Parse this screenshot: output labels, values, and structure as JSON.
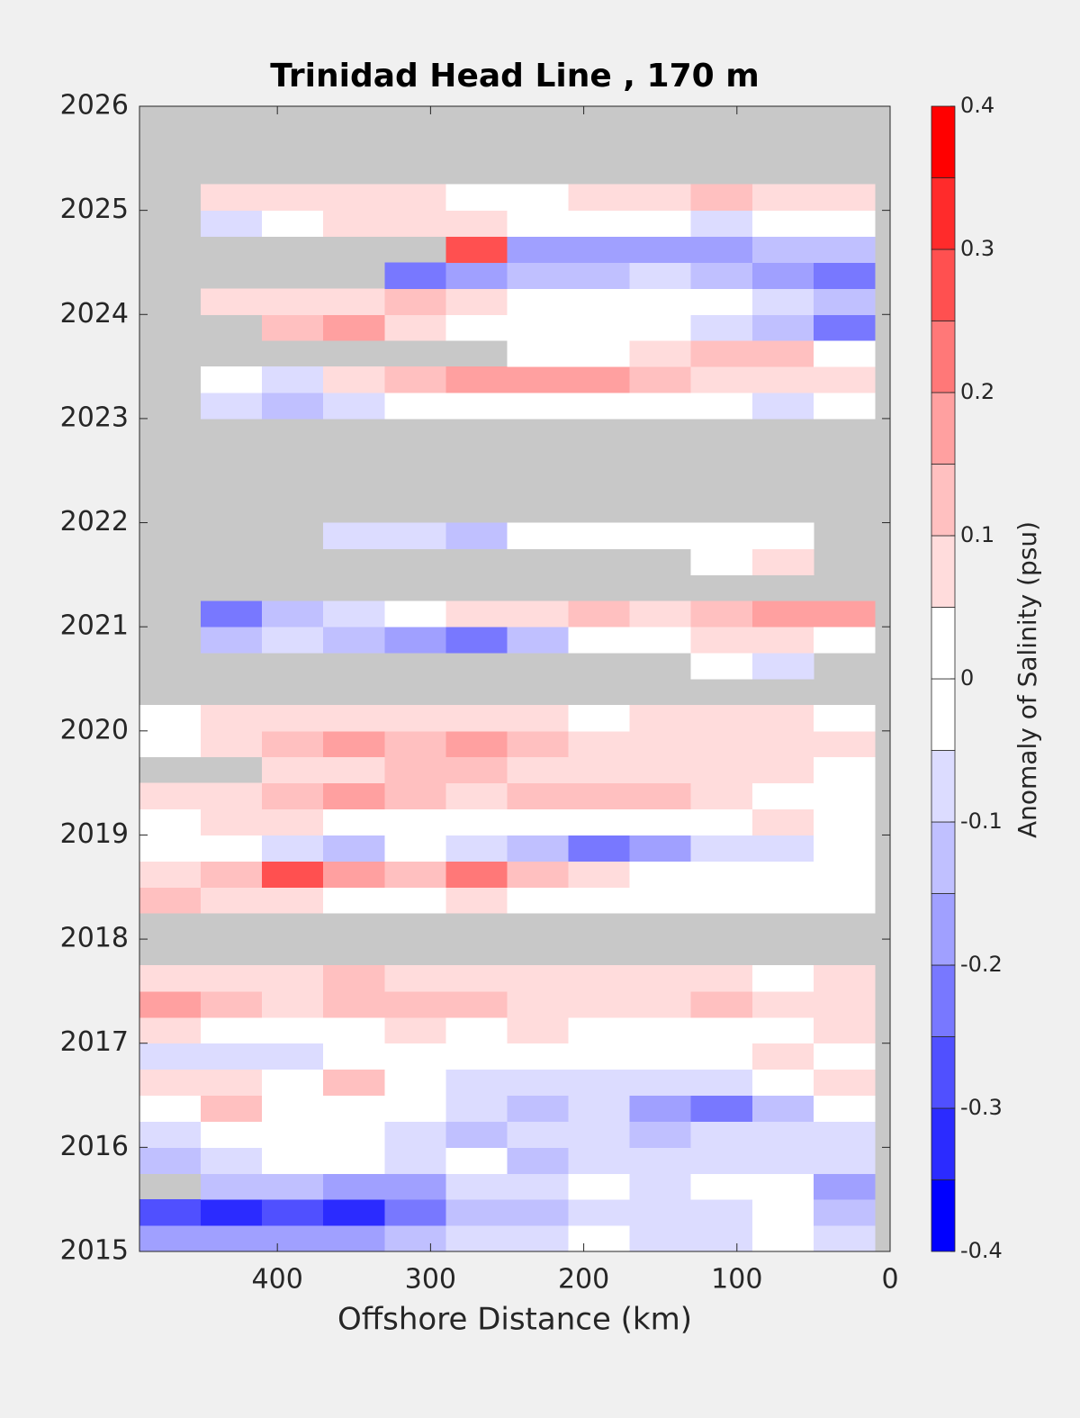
{
  "chart_data": {
    "type": "contourf",
    "title": "Trinidad Head Line , 170 m",
    "xlabel": "Offshore Distance (km)",
    "colorbar_label": "Anomaly of Salinity (psu)",
    "xlim": [
      490,
      0
    ],
    "xticks": [
      400,
      300,
      200,
      100,
      0
    ],
    "ylim": [
      2015,
      2026
    ],
    "yticks": [
      2015,
      2016,
      2017,
      2018,
      2019,
      2020,
      2021,
      2022,
      2023,
      2024,
      2025,
      2026
    ],
    "clim": [
      -0.4,
      0.4
    ],
    "cticks": [
      -0.4,
      -0.3,
      -0.2,
      -0.1,
      0,
      0.1,
      0.2,
      0.3,
      0.4
    ],
    "levels": [
      -0.4,
      -0.35,
      -0.3,
      -0.25,
      -0.2,
      -0.15,
      -0.1,
      -0.05,
      0,
      0.05,
      0.1,
      0.15,
      0.2,
      0.25,
      0.3,
      0.35,
      0.4
    ],
    "colormap": [
      "#0000ff",
      "#2b2bff",
      "#5050ff",
      "#7878ff",
      "#a0a0ff",
      "#c0c0ff",
      "#dcdcff",
      "#ffffff",
      "#ffffff",
      "#ffdcdc",
      "#ffc0c0",
      "#ffa0a0",
      "#ff7878",
      "#ff5050",
      "#ff2b2b",
      "#ff0000"
    ],
    "missing_color": "#c8c8c8",
    "x": [
      470,
      430,
      390,
      350,
      310,
      270,
      230,
      190,
      150,
      110,
      70,
      30
    ],
    "y": [
      2015.125,
      2015.375,
      2015.625,
      2015.875,
      2016.125,
      2016.375,
      2016.625,
      2016.875,
      2017.125,
      2017.375,
      2017.625,
      2017.875,
      2018.125,
      2018.375,
      2018.625,
      2018.875,
      2019.125,
      2019.375,
      2019.625,
      2019.875,
      2020.125,
      2020.375,
      2020.625,
      2020.875,
      2021.125,
      2021.375,
      2021.625,
      2021.875,
      2022.125,
      2022.375,
      2022.625,
      2022.875,
      2023.125,
      2023.375,
      2023.625,
      2023.875,
      2024.125,
      2024.375,
      2024.625,
      2024.875,
      2025.125,
      2025.375,
      2025.625,
      2025.875
    ],
    "z": [
      [
        -0.2,
        -0.2,
        -0.2,
        -0.2,
        -0.15,
        -0.1,
        -0.1,
        -0.05,
        -0.1,
        -0.1,
        -0.05,
        -0.1
      ],
      [
        -0.3,
        -0.35,
        -0.3,
        -0.35,
        -0.25,
        -0.15,
        -0.15,
        -0.1,
        -0.1,
        -0.1,
        -0.05,
        -0.15
      ],
      [
        null,
        -0.15,
        -0.15,
        -0.2,
        -0.2,
        -0.1,
        -0.1,
        -0.05,
        -0.1,
        -0.05,
        0,
        -0.2
      ],
      [
        -0.15,
        -0.1,
        -0.05,
        0,
        -0.1,
        0,
        -0.15,
        -0.1,
        -0.1,
        -0.1,
        -0.1,
        -0.1
      ],
      [
        -0.1,
        0,
        0,
        -0.05,
        -0.1,
        -0.15,
        -0.1,
        -0.1,
        -0.15,
        -0.1,
        -0.1,
        -0.1
      ],
      [
        0,
        0.12,
        0,
        0,
        0,
        -0.07,
        -0.12,
        -0.07,
        -0.17,
        -0.22,
        -0.12,
        0
      ],
      [
        0.07,
        0.07,
        0,
        0.12,
        0,
        -0.07,
        -0.07,
        -0.07,
        -0.07,
        -0.07,
        0,
        0.07
      ],
      [
        -0.07,
        -0.07,
        -0.07,
        0,
        0,
        0,
        0,
        0,
        0,
        0,
        0.07,
        0
      ],
      [
        0.07,
        0,
        0,
        0,
        0.07,
        0,
        0.07,
        0,
        0,
        0,
        0,
        0.07
      ],
      [
        0.17,
        0.12,
        0.07,
        0.12,
        0.12,
        0.12,
        0.07,
        0.07,
        0.07,
        0.12,
        0.07,
        0.07
      ],
      [
        0.07,
        0.07,
        0.07,
        0.12,
        0.07,
        0.07,
        0.07,
        0.07,
        0.07,
        0.07,
        0,
        0.07
      ],
      [
        null,
        null,
        null,
        null,
        null,
        null,
        null,
        null,
        null,
        null,
        null,
        null
      ],
      [
        null,
        null,
        null,
        null,
        null,
        null,
        null,
        null,
        null,
        null,
        null,
        null
      ],
      [
        0.12,
        0.07,
        0.07,
        0,
        0,
        0.07,
        0,
        0,
        0,
        0,
        0,
        0
      ],
      [
        0.07,
        0.12,
        0.27,
        0.17,
        0.12,
        0.22,
        0.12,
        0.07,
        0,
        0,
        0,
        0
      ],
      [
        0,
        0,
        -0.07,
        -0.12,
        0,
        -0.07,
        -0.12,
        -0.22,
        -0.17,
        -0.07,
        -0.07,
        0
      ],
      [
        0,
        0.07,
        0.07,
        0,
        0,
        0,
        0,
        0,
        0,
        0,
        0.07,
        0
      ],
      [
        0.07,
        0.07,
        0.12,
        0.17,
        0.12,
        0.07,
        0.12,
        0.12,
        0.12,
        0.07,
        0,
        0
      ],
      [
        null,
        null,
        0.07,
        0.07,
        0.12,
        0.12,
        0.07,
        0.07,
        0.07,
        0.07,
        0.07,
        0
      ],
      [
        0,
        0.07,
        0.12,
        0.17,
        0.12,
        0.17,
        0.12,
        0.07,
        0.07,
        0.07,
        0.07,
        0.07
      ],
      [
        0,
        0.07,
        0.07,
        0.07,
        0.07,
        0.07,
        0.07,
        0,
        0.07,
        0.07,
        0.07,
        0
      ],
      [
        null,
        null,
        null,
        null,
        null,
        null,
        null,
        null,
        null,
        null,
        null,
        null
      ],
      [
        null,
        null,
        null,
        null,
        null,
        null,
        null,
        null,
        null,
        0,
        -0.07,
        null
      ],
      [
        null,
        -0.12,
        -0.07,
        -0.12,
        -0.17,
        -0.22,
        -0.12,
        0,
        0,
        0.07,
        0.07,
        0
      ],
      [
        null,
        -0.22,
        -0.12,
        -0.07,
        0,
        0.07,
        0.07,
        0.12,
        0.07,
        0.12,
        0.17,
        0.17
      ],
      [
        null,
        null,
        null,
        null,
        null,
        null,
        null,
        null,
        null,
        null,
        null,
        null
      ],
      [
        null,
        null,
        null,
        null,
        null,
        null,
        null,
        null,
        null,
        0,
        0.07,
        null
      ],
      [
        null,
        null,
        null,
        -0.07,
        -0.07,
        -0.12,
        0,
        0,
        0,
        0,
        0,
        null
      ],
      [
        null,
        null,
        null,
        null,
        null,
        null,
        null,
        null,
        null,
        null,
        null,
        null
      ],
      [
        null,
        null,
        null,
        null,
        null,
        null,
        null,
        null,
        null,
        null,
        null,
        null
      ],
      [
        null,
        null,
        null,
        null,
        null,
        null,
        null,
        null,
        null,
        null,
        null,
        null
      ],
      [
        null,
        null,
        null,
        null,
        null,
        null,
        null,
        null,
        null,
        null,
        null,
        null
      ],
      [
        null,
        -0.07,
        -0.12,
        -0.07,
        0,
        0,
        0,
        0,
        0,
        0,
        -0.07,
        0
      ],
      [
        null,
        0,
        -0.07,
        0.07,
        0.12,
        0.17,
        0.17,
        0.17,
        0.12,
        0.07,
        0.07,
        0.07
      ],
      [
        null,
        null,
        null,
        null,
        null,
        null,
        0,
        0,
        0.07,
        0.12,
        0.12,
        0
      ],
      [
        null,
        null,
        0.12,
        0.17,
        0.07,
        0,
        0,
        0,
        0,
        -0.07,
        -0.12,
        -0.22
      ],
      [
        null,
        0.07,
        0.07,
        0.07,
        0.12,
        0.07,
        0,
        0,
        0,
        0,
        -0.07,
        -0.12
      ],
      [
        null,
        null,
        null,
        null,
        -0.22,
        -0.17,
        -0.12,
        -0.12,
        -0.07,
        -0.12,
        -0.17,
        -0.22
      ],
      [
        null,
        null,
        null,
        null,
        null,
        0.27,
        -0.17,
        -0.17,
        -0.17,
        -0.17,
        -0.12,
        -0.12
      ],
      [
        null,
        -0.07,
        0,
        0.07,
        0.07,
        0.07,
        0,
        0,
        0,
        -0.07,
        0,
        0
      ],
      [
        null,
        0.07,
        0.07,
        0.07,
        0.07,
        0,
        0,
        0.07,
        0.07,
        0.12,
        0.07,
        0.07
      ],
      [
        null,
        null,
        null,
        null,
        null,
        null,
        null,
        null,
        null,
        null,
        null,
        null
      ],
      [
        null,
        null,
        null,
        null,
        null,
        null,
        null,
        null,
        null,
        null,
        null,
        null
      ],
      [
        null,
        null,
        null,
        null,
        null,
        null,
        null,
        null,
        null,
        null,
        null,
        null
      ]
    ]
  }
}
